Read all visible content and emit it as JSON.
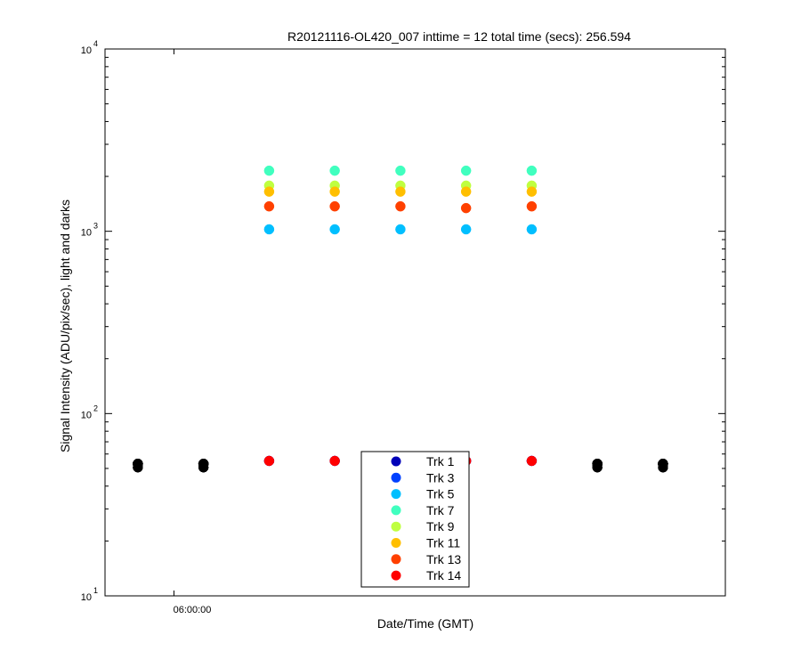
{
  "chart_data": {
    "type": "scatter",
    "title": "R20121116-OL420_007 inttime = 12 total time (secs): 256.594",
    "xlabel": "Date/Time (GMT)",
    "ylabel": "Signal Intensity (ADU/pix/sec), light and darks",
    "y_scale": "log",
    "ylim": [
      10,
      10000
    ],
    "y_ticks": [
      {
        "base": "10",
        "exp": "1",
        "value": 10
      },
      {
        "base": "10",
        "exp": "2",
        "value": 100
      },
      {
        "base": "10",
        "exp": "3",
        "value": 1000
      },
      {
        "base": "10",
        "exp": "4",
        "value": 10000
      }
    ],
    "x_tick_label": "06:00:00",
    "x_points": [
      1,
      2,
      3,
      4,
      5,
      6,
      7,
      8,
      9
    ],
    "xlim": [
      0.5,
      9.95
    ],
    "x_tick_at": 1.55,
    "light_positions": [
      3,
      4,
      5,
      6,
      7
    ],
    "legend_position": "bottom-center",
    "series": [
      {
        "name": "Trk 1",
        "color": "#0000b8",
        "values": [
          53,
          53,
          55,
          55,
          55,
          55,
          55,
          53,
          53
        ]
      },
      {
        "name": "Trk 3",
        "color": "#0040ff",
        "values": [
          53,
          53,
          55,
          55,
          55,
          55,
          55,
          53,
          53
        ]
      },
      {
        "name": "Trk 5",
        "color": "#00bfff",
        "values": [
          53,
          53,
          1025,
          1025,
          1025,
          1025,
          1025,
          53,
          53
        ]
      },
      {
        "name": "Trk 7",
        "color": "#40ffbf",
        "values": [
          53,
          53,
          2150,
          2150,
          2150,
          2150,
          2150,
          53,
          53
        ]
      },
      {
        "name": "Trk 9",
        "color": "#bfff40",
        "values": [
          53,
          53,
          1780,
          1780,
          1780,
          1780,
          1780,
          53,
          53
        ]
      },
      {
        "name": "Trk 11",
        "color": "#ffbf00",
        "values": [
          53,
          53,
          1650,
          1650,
          1650,
          1650,
          1650,
          53,
          53
        ]
      },
      {
        "name": "Trk 13",
        "color": "#ff4000",
        "values": [
          53,
          53,
          1370,
          1370,
          1370,
          1340,
          1370,
          53,
          53
        ]
      },
      {
        "name": "Trk 14",
        "color": "#ff0000",
        "values": [
          53,
          53,
          55,
          55,
          55,
          55,
          55,
          53,
          53
        ]
      }
    ],
    "dark_color": "#000000",
    "grid": false
  }
}
